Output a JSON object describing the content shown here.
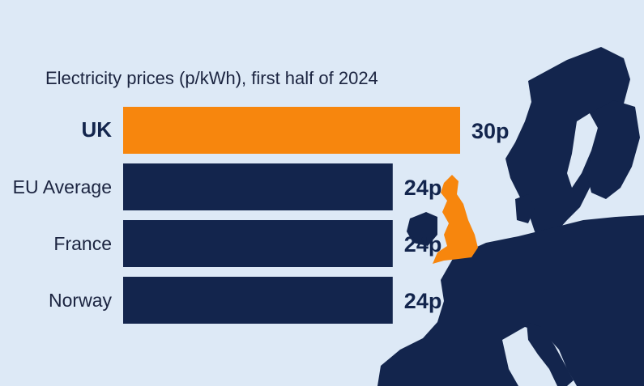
{
  "chart_data": {
    "type": "bar",
    "orientation": "horizontal",
    "title": "Electricity prices (p/kWh), first half of 2024",
    "categories": [
      "UK",
      "EU Average",
      "France",
      "Norway"
    ],
    "values": [
      30,
      24,
      24,
      24
    ],
    "value_labels": [
      "30p",
      "24p",
      "24p",
      "24p"
    ],
    "highlight": "UK",
    "xlim": [
      0,
      30
    ],
    "grid": false,
    "legend": "none"
  },
  "colors": {
    "background": "#dde9f6",
    "bar": "#13254d",
    "highlight_bar": "#f7860d",
    "map_land": "#13254d",
    "map_uk": "#f7860d"
  },
  "decor": {
    "background_map": "europe-map-icon",
    "highlighted_country": "uk-map-icon"
  }
}
